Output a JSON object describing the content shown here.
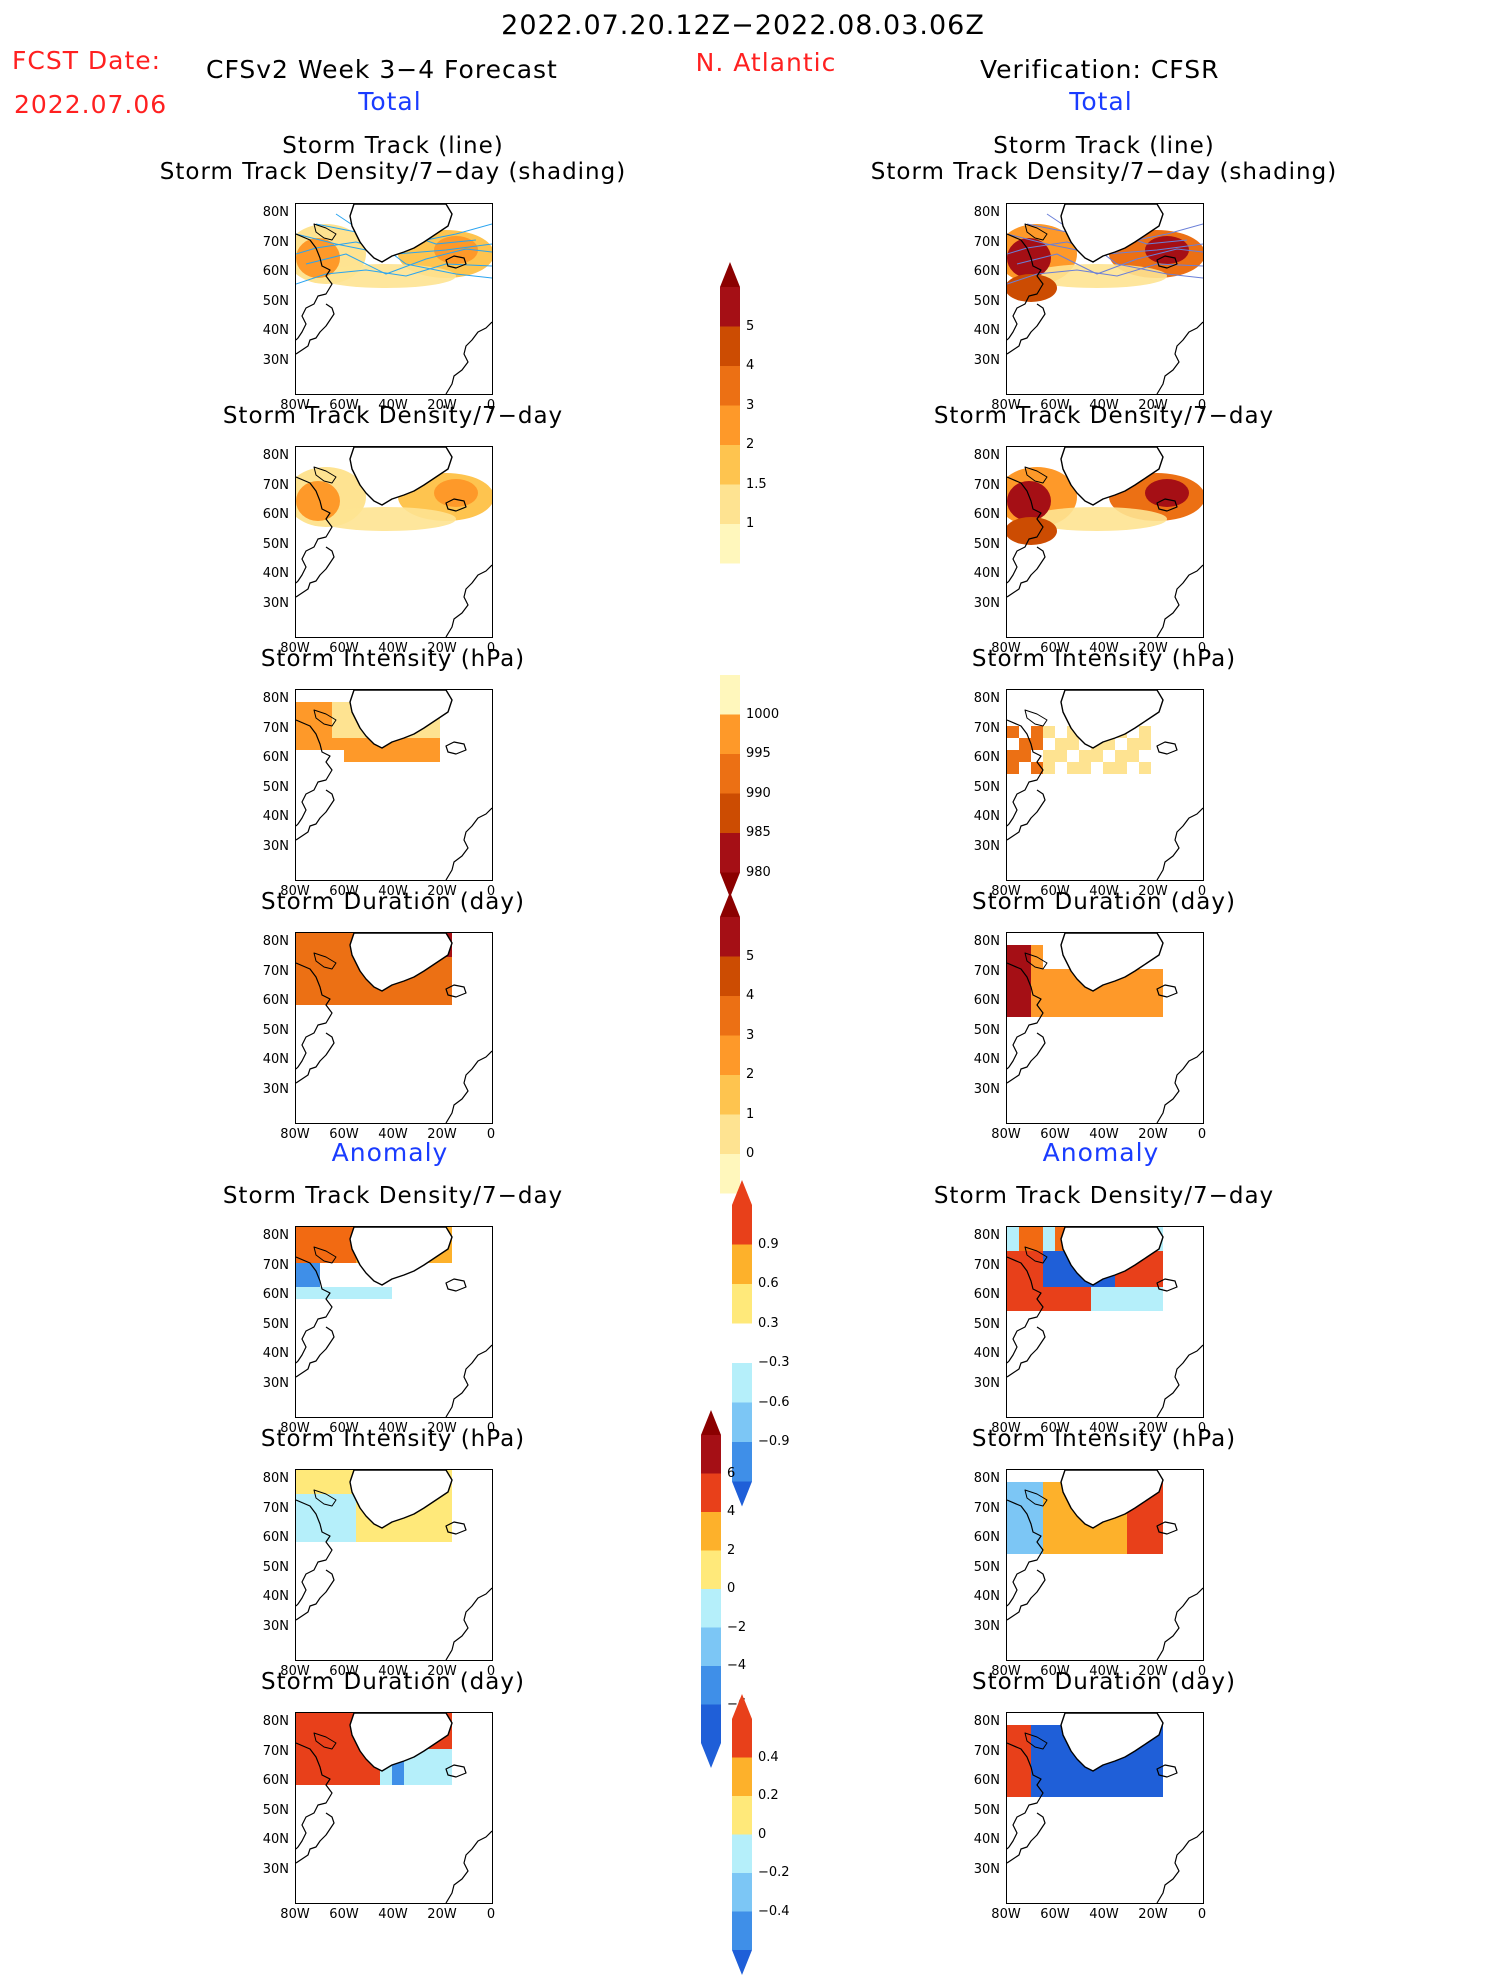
{
  "header": {
    "period": "2022.07.20.12Z−2022.08.03.06Z",
    "fcst_label": "FCST Date:",
    "fcst_date": "2022.07.06",
    "model": "CFSv2 Week 3−4 Forecast",
    "region": "N. Atlantic",
    "verification": "Verification: CFSR",
    "left_total": "Total",
    "right_total": "Total",
    "left_anomaly": "Anomaly",
    "right_anomaly": "Anomaly"
  },
  "panel_titles": {
    "track": [
      "Storm Track (line)",
      "Storm Track Density/7−day (shading)"
    ],
    "density": "Storm Track Density/7−day",
    "intensity": "Storm Intensity (hPa)",
    "duration": "Storm Duration (day)"
  },
  "axes": {
    "lat_ticks": [
      "80N",
      "70N",
      "60N",
      "50N",
      "40N",
      "30N"
    ],
    "lon_ticks": [
      "80W",
      "60W",
      "40W",
      "20W",
      "0"
    ]
  },
  "colorbars": {
    "density_total": [
      "5",
      "4",
      "3",
      "2",
      "1.5",
      "1"
    ],
    "intensity_total": [
      "1000",
      "995",
      "990",
      "985",
      "980"
    ],
    "duration_total": [
      "5",
      "4",
      "3",
      "2",
      "1",
      "0"
    ],
    "density_anom": [
      "0.9",
      "0.6",
      "0.3",
      "−0.3",
      "−0.6",
      "−0.9"
    ],
    "intensity_anom": [
      "6",
      "4",
      "2",
      "0",
      "−2",
      "−4",
      "−6"
    ],
    "duration_anom": [
      "0.4",
      "0.2",
      "0",
      "−0.2",
      "−0.4"
    ]
  },
  "colors": {
    "title_red": "#ff2020",
    "title_blue": "#1a3cff",
    "track_line": "#2aa4f0",
    "verif_track_line": "#6a7fd8"
  }
}
